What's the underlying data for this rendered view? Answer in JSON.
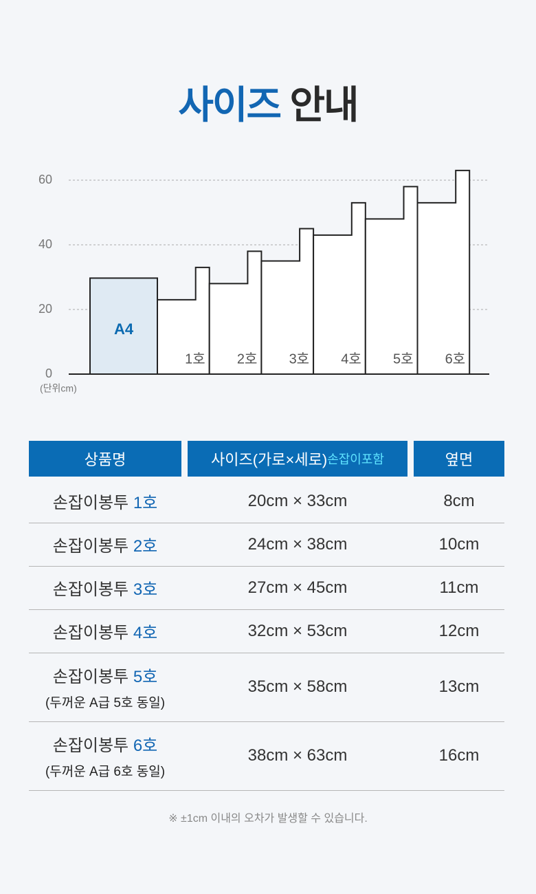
{
  "header": {
    "title_highlight": "사이즈",
    "title_rest": "안내"
  },
  "chart_data": {
    "type": "bag",
    "categories": [
      "A4",
      "1호",
      "2호",
      "3호",
      "4호",
      "5호",
      "6호"
    ],
    "values": [
      29.7,
      33,
      38,
      45,
      53,
      58,
      63
    ],
    "ylim": [
      0,
      65
    ],
    "yticks": [
      0,
      20,
      40,
      60
    ],
    "unit_label": "(단위cm)",
    "grid": true,
    "color": "#0b6ab0"
  },
  "table": {
    "headers": [
      "상품명",
      "사이즈(가로×세로)",
      "옆면"
    ],
    "header_note": "손잡이포함",
    "rows": [
      {
        "name": "손잡이봉투",
        "size_no": "1호",
        "size": "20cm × 33cm",
        "side": "8cm"
      },
      {
        "name": "손잡이봉투",
        "size_no": "2호",
        "size": "24cm × 38cm",
        "side": "10cm"
      },
      {
        "name": "손잡이봉투",
        "size_no": "3호",
        "size": "27cm × 45cm",
        "side": "11cm"
      },
      {
        "name": "손잡이봉투",
        "size_no": "4호",
        "size": "32cm × 53cm",
        "side": "12cm"
      },
      {
        "name": "손잡이봉투",
        "size_no": "5호",
        "note": "(두꺼운 A급 5호 동일)",
        "size": "35cm × 58cm",
        "side": "13cm"
      },
      {
        "name": "손잡이봉투",
        "size_no": "6호",
        "note": "(두꺼운 A급 6호 동일)",
        "size": "38cm × 63cm",
        "side": "16cm"
      }
    ]
  },
  "footnote": "※ ±1cm 이내의 오차가 발생할 수 있습니다."
}
